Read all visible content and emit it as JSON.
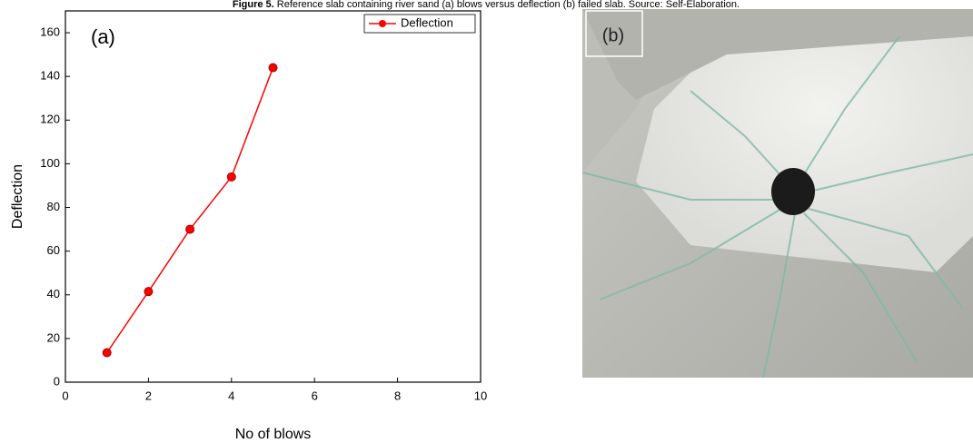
{
  "caption": {
    "label": "Figure 5.",
    "text": "Reference slab containing river sand (a) blows versus deflection (b) failed slab. Source: Self-Elaboration."
  },
  "chart_data": {
    "type": "line",
    "annotation": "(a)",
    "x_label": "No of blows",
    "y_label": "Deflection",
    "x": [
      1,
      2,
      3,
      4,
      5
    ],
    "series": [
      {
        "name": "Deflection",
        "color": "#ff0000",
        "values": [
          13.5,
          41.5,
          70,
          94,
          144
        ]
      }
    ],
    "xlim": [
      0,
      10
    ],
    "xticks": [
      0,
      2,
      4,
      6,
      8,
      10
    ],
    "ylim": [
      0,
      170
    ],
    "yticks": [
      0,
      20,
      40,
      60,
      80,
      100,
      120,
      140,
      160
    ],
    "legend": "top-right"
  },
  "photo": {
    "label": "(b)"
  }
}
